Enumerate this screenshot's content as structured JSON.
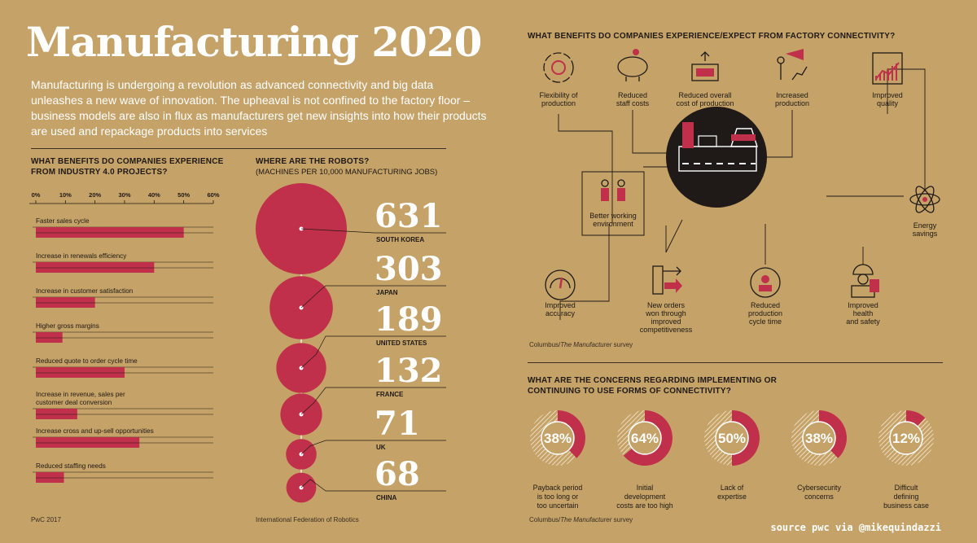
{
  "header": {
    "title": "Manufacturing 2020",
    "intro": "Manufacturing is undergoing a revolution as advanced connectivity and big data unleashes a new wave of innovation. The upheaval is not confined to the factory floor – business models are also in flux as manufacturers get new insights into how their products are used and repackage products into services"
  },
  "colors": {
    "background": "#c5a267",
    "accent": "#c0304a",
    "dark": "#1f1a17",
    "white": "#ffffff"
  },
  "benefits": {
    "title_line1": "WHAT BENEFITS DO COMPANIES EXPERIENCE",
    "title_line2": "FROM INDUSTRY 4.0 PROJECTS?",
    "source": "PwC 2017"
  },
  "robots": {
    "title": "WHERE ARE THE ROBOTS?",
    "subtitle": "(MACHINES PER 10,000 MANUFACTURING JOBS)",
    "source": "International Federation of Robotics"
  },
  "connectivity": {
    "title": "WHAT BENEFITS DO COMPANIES EXPERIENCE/EXPECT FROM FACTORY CONNECTIVITY?",
    "source_prefix": "Columbus/",
    "source_italic": "The Manufacturer",
    "source_suffix": " survey",
    "icons": [
      {
        "icon": "gear-cycle-icon",
        "lines": [
          "Flexibility of",
          "production"
        ]
      },
      {
        "icon": "piggy-bank-icon",
        "lines": [
          "Reduced",
          "staff costs"
        ]
      },
      {
        "icon": "money-box-icon",
        "lines": [
          "Reduced overall",
          "cost of production"
        ]
      },
      {
        "icon": "megaphone-chart-icon",
        "lines": [
          "Increased",
          "production"
        ]
      },
      {
        "icon": "quality-chart-icon",
        "lines": [
          "Improved",
          "quality"
        ]
      },
      {
        "icon": "people-icon",
        "lines": [
          "Better working",
          "environment"
        ]
      },
      {
        "icon": "atom-icon",
        "lines": [
          "Energy",
          "savings"
        ]
      },
      {
        "icon": "gauge-icon",
        "lines": [
          "Improved",
          "accuracy"
        ]
      },
      {
        "icon": "orders-arrows-icon",
        "lines": [
          "New orders",
          "won through",
          "improved",
          "competitiveness"
        ]
      },
      {
        "icon": "clock-person-icon",
        "lines": [
          "Reduced",
          "production",
          "cycle time"
        ]
      },
      {
        "icon": "hardhat-worker-icon",
        "lines": [
          "Improved",
          "health",
          "and safety"
        ]
      }
    ]
  },
  "concerns": {
    "title_line1": "WHAT ARE THE CONCERNS REGARDING IMPLEMENTING OR",
    "title_line2": "CONTINUING TO USE FORMS OF CONNECTIVITY?",
    "source_prefix": "Columbus/",
    "source_italic": "The Manufacturer",
    "source_suffix": " survey"
  },
  "credit": "source pwc via @mikequindazzi",
  "chart_data": [
    {
      "type": "bar",
      "title": "WHAT BENEFITS DO COMPANIES EXPERIENCE FROM INDUSTRY 4.0 PROJECTS?",
      "orientation": "horizontal",
      "xlim": [
        0,
        60
      ],
      "ticks": [
        "0%",
        "10%",
        "20%",
        "30%",
        "40%",
        "50%",
        "60%"
      ],
      "categories": [
        "Faster sales cycle",
        "Increase in renewals efficiency",
        "Increase in customer satisfaction",
        "Higher gross margins",
        "Reduced quote to order cycle time",
        "Increase in revenue, sales per customer deal conversion",
        "Increase cross and up-sell opportunities",
        "Reduced staffing needs"
      ],
      "category_lines": [
        [
          "Faster sales cycle"
        ],
        [
          "Increase in renewals efficiency"
        ],
        [
          "Increase in customer satisfaction"
        ],
        [
          "Higher gross margins"
        ],
        [
          "Reduced quote to order cycle time"
        ],
        [
          "Increase in revenue, sales per",
          "customer deal conversion"
        ],
        [
          "Increase cross and up-sell opportunities"
        ],
        [
          "Reduced staffing needs"
        ]
      ],
      "values": [
        50,
        40,
        20,
        9,
        30,
        14,
        35,
        9.5
      ]
    },
    {
      "type": "bubble",
      "title": "WHERE ARE THE ROBOTS?",
      "categories": [
        "SOUTH KOREA",
        "JAPAN",
        "UNITED STATES",
        "FRANCE",
        "UK",
        "CHINA"
      ],
      "values": [
        631,
        303,
        189,
        132,
        71,
        68
      ]
    },
    {
      "type": "pie",
      "title": "WHAT ARE THE CONCERNS REGARDING IMPLEMENTING OR CONTINUING TO USE FORMS OF CONNECTIVITY?",
      "items": [
        {
          "value": 38,
          "label": "38%",
          "lines": [
            "Payback period",
            "is too long or",
            "too uncertain"
          ]
        },
        {
          "value": 64,
          "label": "64%",
          "lines": [
            "Initial",
            "development",
            "costs are too high"
          ]
        },
        {
          "value": 50,
          "label": "50%",
          "lines": [
            "Lack of",
            "expertise"
          ]
        },
        {
          "value": 38,
          "label": "38%",
          "lines": [
            "Cybersecurity",
            "concerns"
          ]
        },
        {
          "value": 12,
          "label": "12%",
          "lines": [
            "Difficult",
            "defining",
            "business case"
          ]
        }
      ]
    }
  ]
}
